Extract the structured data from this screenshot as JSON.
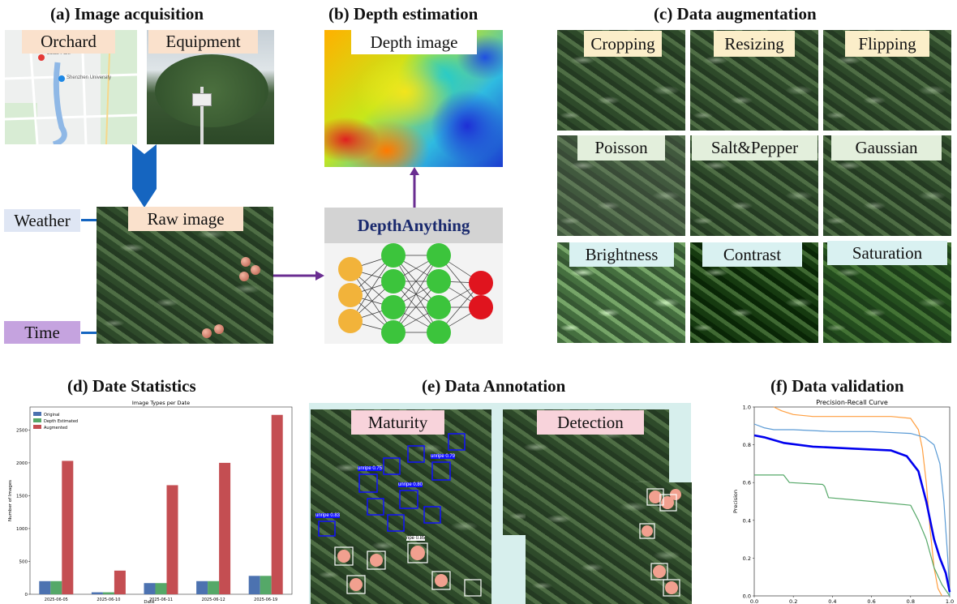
{
  "panels": {
    "a": {
      "title": "(a) Image acquisition",
      "labels": {
        "orchard": "Orchard",
        "equipment": "Equipment",
        "raw_image": "Raw image",
        "weather": "Weather",
        "time": "Time"
      },
      "map_text": [
        "Lotus Park",
        "Shenzhen University"
      ]
    },
    "b": {
      "title": "(b) Depth estimation",
      "depth_label": "Depth image",
      "model_label": "DepthAnything"
    },
    "c": {
      "title": "(c) Data augmentation",
      "tiles": [
        "Cropping",
        "Resizing",
        "Flipping",
        "Poisson",
        "Salt&Pepper",
        "Gaussian",
        "Brightness",
        "Contrast",
        "Saturation"
      ]
    },
    "d": {
      "title": "(d) Date Statistics"
    },
    "e": {
      "title": "(e) Data  Annotation",
      "maturity_label": "Maturity",
      "detection_label": "Detection",
      "box_text": [
        "unripe 0.75",
        "unripe 0.80",
        "unripe 0.79",
        "unripe 0.83",
        "ripe 0.85"
      ]
    },
    "f": {
      "title": "(f) Data validation"
    }
  },
  "colors": {
    "arrow_blue": "#1565c0",
    "arrow_purple": "#6a2d91",
    "weather_bg": "#dfe6f4",
    "time_bg": "#c5a3df",
    "label_peach": "#fae1cc",
    "label_yellow": "#fbeec9",
    "label_green": "#e3efdc",
    "label_cyan": "#d9f1f1",
    "label_pink": "#f8d3db",
    "annotation_bg": "#d7efed",
    "series_original": "#4c72b0",
    "series_depth": "#55a868",
    "series_augmented": "#c44e52"
  },
  "chart_data": [
    {
      "type": "bar",
      "title": "Image Types per Date",
      "xlabel": "Date",
      "ylabel": "Number of Images",
      "categories": [
        "2025-06-05",
        "2025-06-10",
        "2025-06-11",
        "2025-06-12",
        "2025-06-19"
      ],
      "series": [
        {
          "name": "Original",
          "color": "#4c72b0",
          "values": [
            200,
            30,
            170,
            200,
            280
          ]
        },
        {
          "name": "Depth Estimated",
          "color": "#55a868",
          "values": [
            200,
            30,
            170,
            200,
            280
          ]
        },
        {
          "name": "Augmented",
          "color": "#c44e52",
          "values": [
            2030,
            360,
            1660,
            2000,
            2730
          ]
        }
      ],
      "ylim": [
        0,
        2850
      ],
      "yticks": [
        0,
        500,
        1000,
        1500,
        2000,
        2500
      ],
      "legend": "top-left",
      "grid": false
    },
    {
      "type": "line",
      "title": "Precision-Recall Curve",
      "xlabel": "",
      "ylabel": "Precision",
      "xlim": [
        0,
        1
      ],
      "ylim": [
        0,
        1
      ],
      "xticks": [
        "0.0",
        "0.2",
        "0.4",
        "0.6",
        "0.8",
        "1.0"
      ],
      "yticks": [
        "0.0",
        "0.2",
        "0.4",
        "0.6",
        "0.8",
        "1.0"
      ],
      "series": [
        {
          "color": "#ff9f40",
          "width": 1.2,
          "points": [
            [
              0.1,
              1.0
            ],
            [
              0.14,
              0.98
            ],
            [
              0.2,
              0.96
            ],
            [
              0.3,
              0.95
            ],
            [
              0.5,
              0.95
            ],
            [
              0.7,
              0.95
            ],
            [
              0.8,
              0.94
            ],
            [
              0.84,
              0.88
            ],
            [
              0.86,
              0.78
            ],
            [
              0.88,
              0.6
            ],
            [
              0.9,
              0.35
            ],
            [
              0.92,
              0.15
            ],
            [
              0.94,
              0.04
            ],
            [
              0.96,
              0.0
            ]
          ]
        },
        {
          "color": "#5b9bd5",
          "width": 1.2,
          "points": [
            [
              0.0,
              0.91
            ],
            [
              0.05,
              0.89
            ],
            [
              0.1,
              0.88
            ],
            [
              0.2,
              0.88
            ],
            [
              0.4,
              0.87
            ],
            [
              0.6,
              0.87
            ],
            [
              0.8,
              0.86
            ],
            [
              0.87,
              0.84
            ],
            [
              0.92,
              0.8
            ],
            [
              0.95,
              0.7
            ],
            [
              0.97,
              0.5
            ],
            [
              0.99,
              0.2
            ],
            [
              1.0,
              0.0
            ]
          ]
        },
        {
          "color": "#0000ee",
          "width": 2.6,
          "points": [
            [
              0.0,
              0.85
            ],
            [
              0.05,
              0.84
            ],
            [
              0.15,
              0.81
            ],
            [
              0.3,
              0.79
            ],
            [
              0.5,
              0.78
            ],
            [
              0.7,
              0.77
            ],
            [
              0.78,
              0.74
            ],
            [
              0.84,
              0.66
            ],
            [
              0.88,
              0.5
            ],
            [
              0.92,
              0.3
            ],
            [
              0.95,
              0.2
            ],
            [
              0.98,
              0.12
            ],
            [
              1.0,
              0.02
            ]
          ]
        },
        {
          "color": "#55a868",
          "width": 1.2,
          "points": [
            [
              0.0,
              0.64
            ],
            [
              0.15,
              0.64
            ],
            [
              0.18,
              0.6
            ],
            [
              0.35,
              0.59
            ],
            [
              0.36,
              0.58
            ],
            [
              0.38,
              0.52
            ],
            [
              0.6,
              0.5
            ],
            [
              0.8,
              0.48
            ],
            [
              0.84,
              0.4
            ],
            [
              0.88,
              0.3
            ],
            [
              0.92,
              0.15
            ],
            [
              0.96,
              0.06
            ],
            [
              1.0,
              0.0
            ]
          ]
        }
      ]
    }
  ]
}
